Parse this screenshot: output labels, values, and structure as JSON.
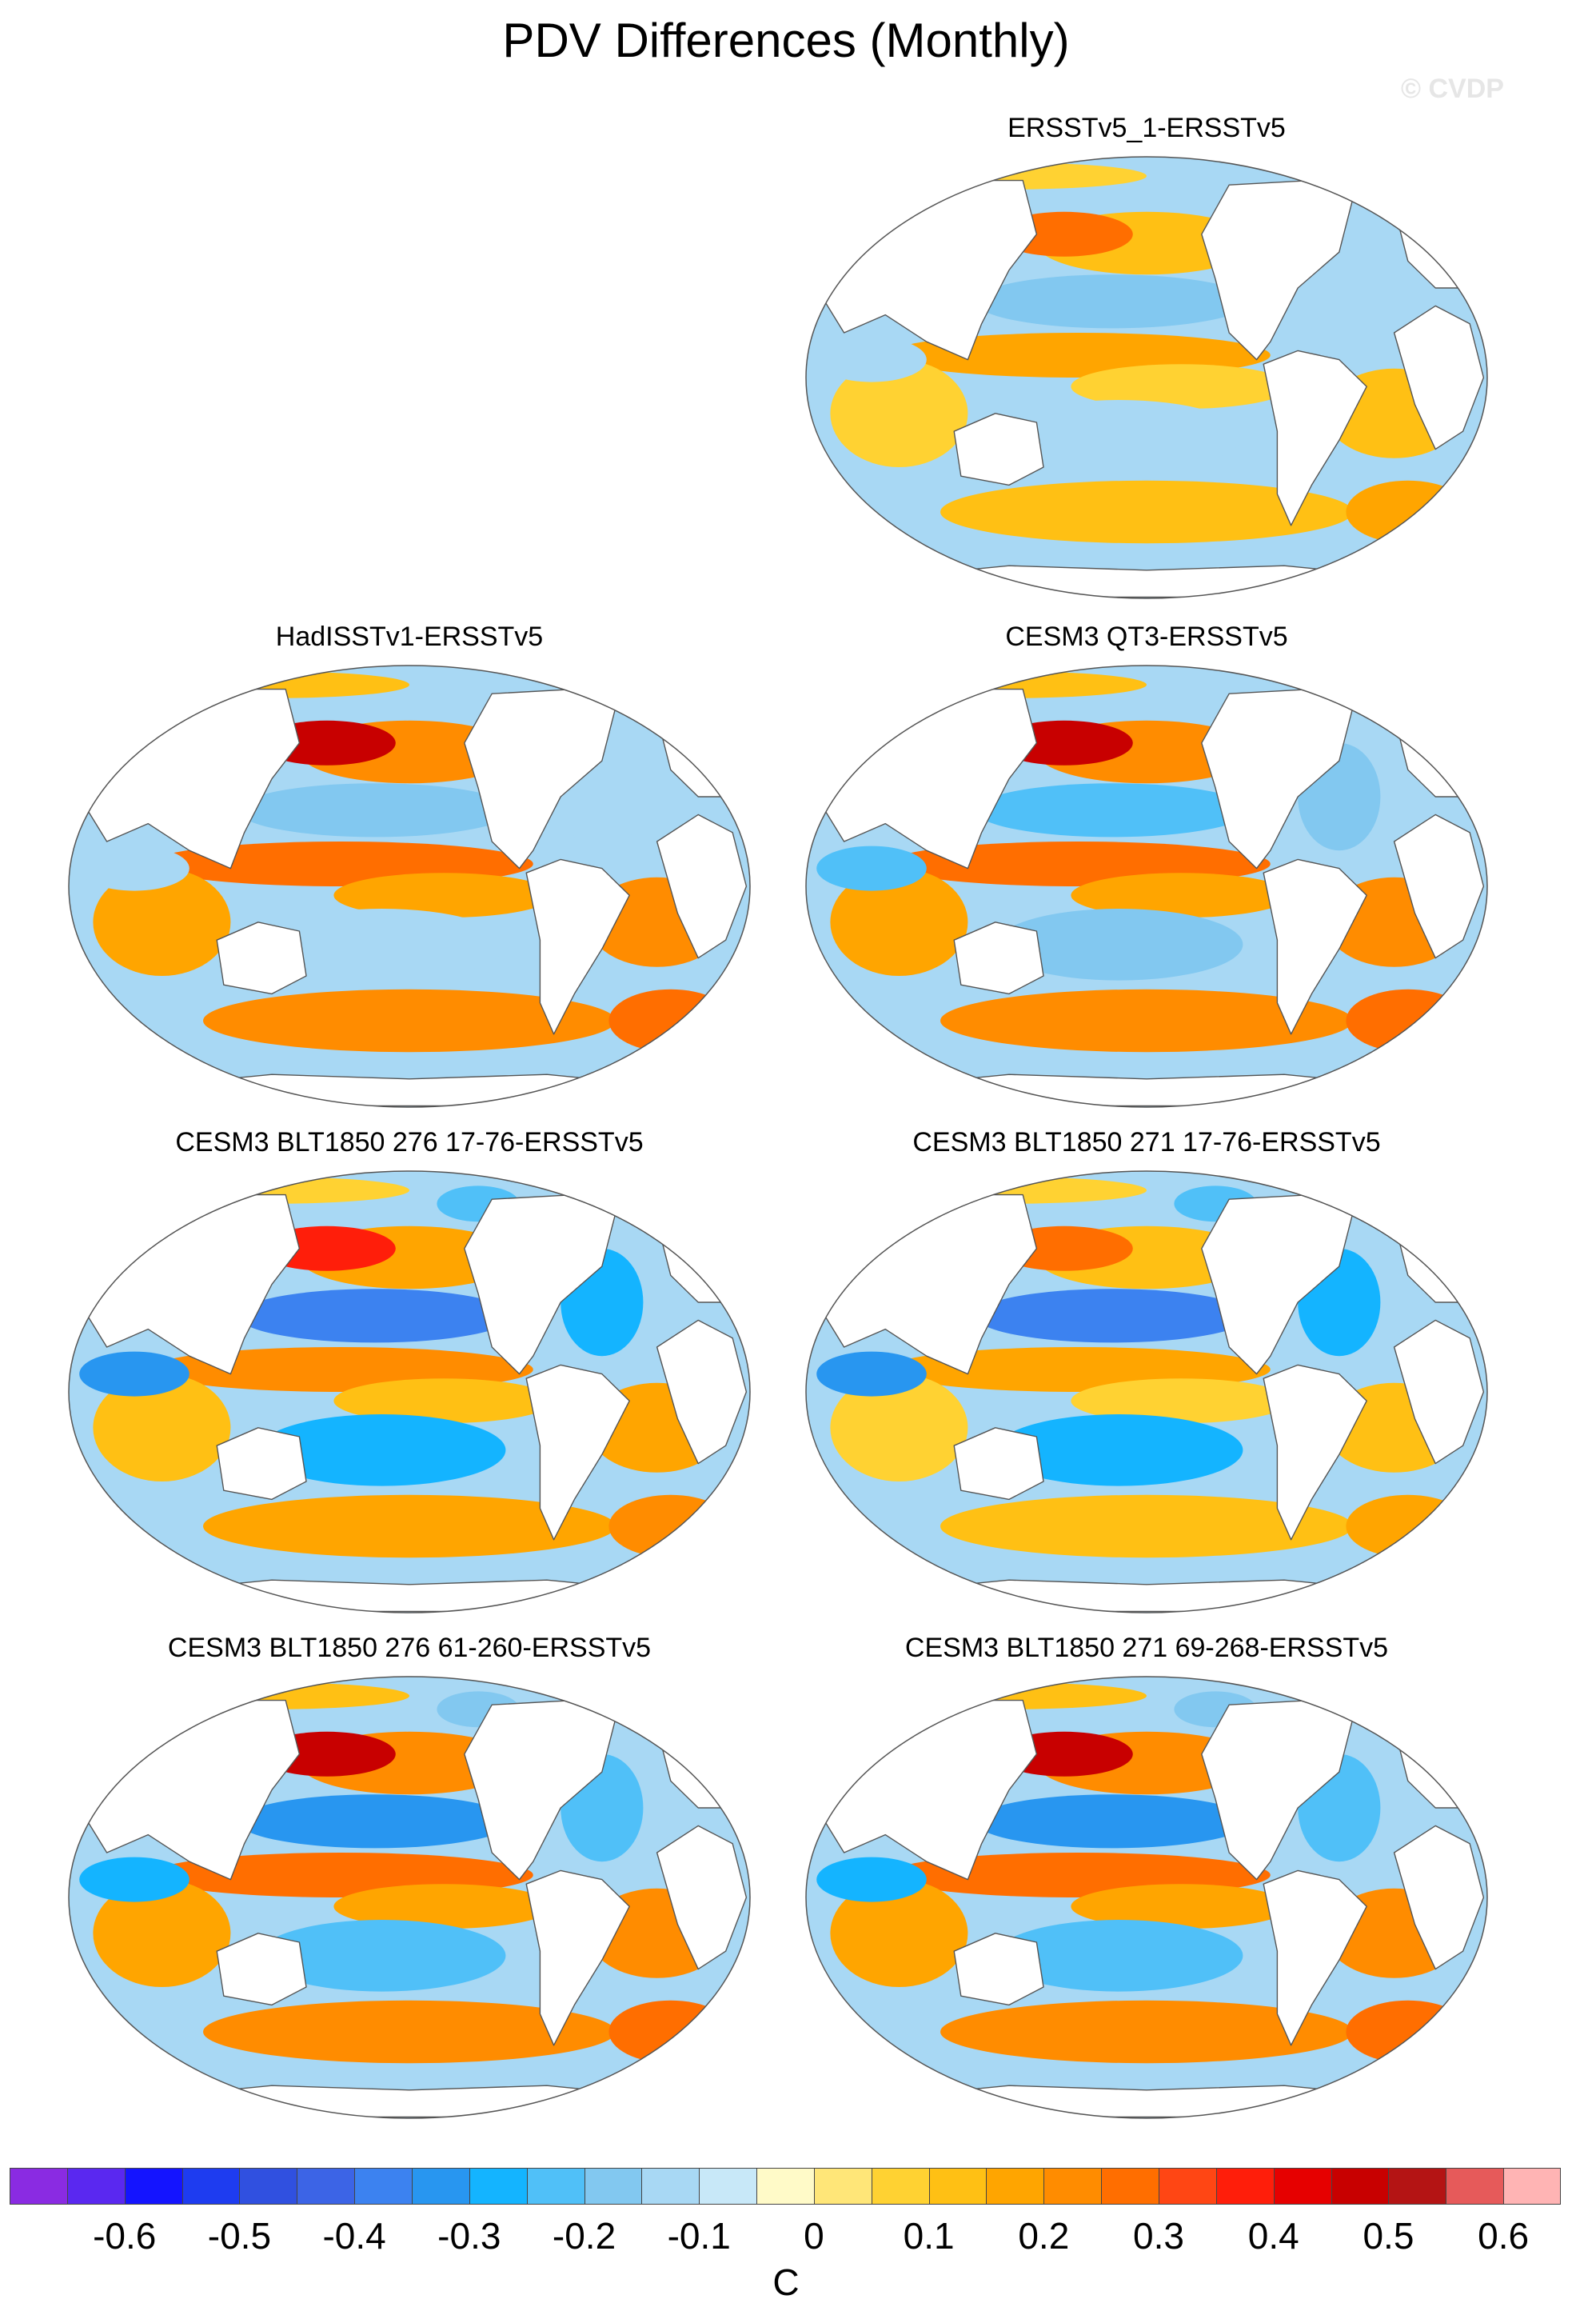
{
  "title": "PDV Differences (Monthly)",
  "watermark": "© CVDP",
  "panels": [
    {
      "title": "ERSSTv5_1-ERSSTv5",
      "warm_pacific": 0.3,
      "cool_subtropics": -0.2
    },
    {
      "title": "HadISSTv1-ERSSTv5",
      "warm_pacific": 0.5,
      "cool_subtropics": -0.2
    },
    {
      "title": "CESM3 QT3-ERSSTv5",
      "warm_pacific": 0.5,
      "cool_subtropics": -0.3
    },
    {
      "title": "CESM3 BLT1850 276 17-76-ERSSTv5",
      "warm_pacific": 0.4,
      "cool_subtropics": -0.5
    },
    {
      "title": "CESM3 BLT1850 271 17-76-ERSSTv5",
      "warm_pacific": 0.3,
      "cool_subtropics": -0.5
    },
    {
      "title": "CESM3 BLT1850 276 61-260-ERSSTv5",
      "warm_pacific": 0.5,
      "cool_subtropics": -0.4
    },
    {
      "title": "CESM3 BLT1850 271 69-268-ERSSTv5",
      "warm_pacific": 0.5,
      "cool_subtropics": -0.4
    }
  ],
  "colorbar": {
    "unit": "C",
    "labels": [
      "-0.6",
      "-0.5",
      "-0.4",
      "-0.3",
      "-0.2",
      "-0.1",
      "0",
      "0.1",
      "0.2",
      "0.3",
      "0.4",
      "0.5",
      "0.6"
    ],
    "colors": [
      "#8a2be2",
      "#5a28f0",
      "#1414ff",
      "#1e3cf0",
      "#3050e0",
      "#3c64e6",
      "#3c82f0",
      "#2896f0",
      "#14b4ff",
      "#50c0f8",
      "#82c8f0",
      "#a8d8f4",
      "#c8e8f8",
      "#fffac8",
      "#ffe678",
      "#ffd232",
      "#ffc014",
      "#ffa500",
      "#ff8c00",
      "#ff6e00",
      "#ff4614",
      "#ff1e0a",
      "#e60000",
      "#c80000",
      "#b41414",
      "#e65a5a",
      "#ffb4b4"
    ]
  }
}
